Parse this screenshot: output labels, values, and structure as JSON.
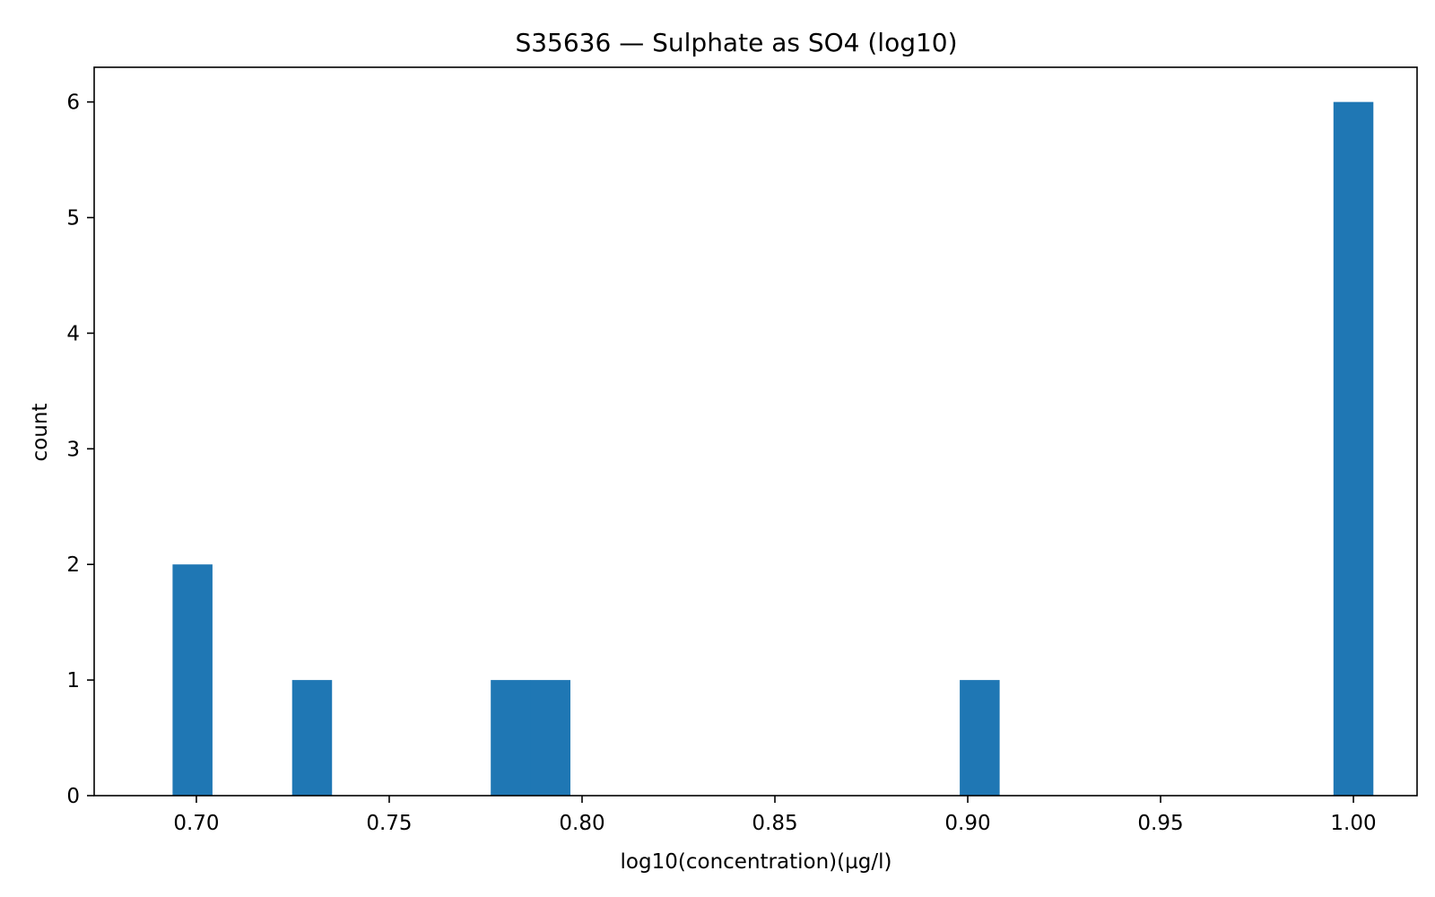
{
  "chart_data": {
    "type": "bar",
    "title": "S35636 — Sulphate as SO4 (log10)",
    "xlabel": "log10(concentration)(µg/l)",
    "ylabel": "count",
    "xlim": [
      0.6735,
      1.0165
    ],
    "ylim": [
      0,
      6.3
    ],
    "grid": false,
    "bar_color": "#1f77b4",
    "bin_width": 0.01035,
    "bins": [
      {
        "x": 0.699,
        "count": 2
      },
      {
        "x": 0.73,
        "count": 1
      },
      {
        "x": 0.7815,
        "count": 1
      },
      {
        "x": 0.7918,
        "count": 1
      },
      {
        "x": 0.9031,
        "count": 1
      },
      {
        "x": 1.0,
        "count": 6
      }
    ],
    "xticks": [
      {
        "value": 0.7,
        "label": "0.70"
      },
      {
        "value": 0.75,
        "label": "0.75"
      },
      {
        "value": 0.8,
        "label": "0.80"
      },
      {
        "value": 0.85,
        "label": "0.85"
      },
      {
        "value": 0.9,
        "label": "0.90"
      },
      {
        "value": 0.95,
        "label": "0.95"
      },
      {
        "value": 1.0,
        "label": "1.00"
      }
    ],
    "yticks": [
      {
        "value": 0,
        "label": "0"
      },
      {
        "value": 1,
        "label": "1"
      },
      {
        "value": 2,
        "label": "2"
      },
      {
        "value": 3,
        "label": "3"
      },
      {
        "value": 4,
        "label": "4"
      },
      {
        "value": 5,
        "label": "5"
      },
      {
        "value": 6,
        "label": "6"
      }
    ]
  }
}
